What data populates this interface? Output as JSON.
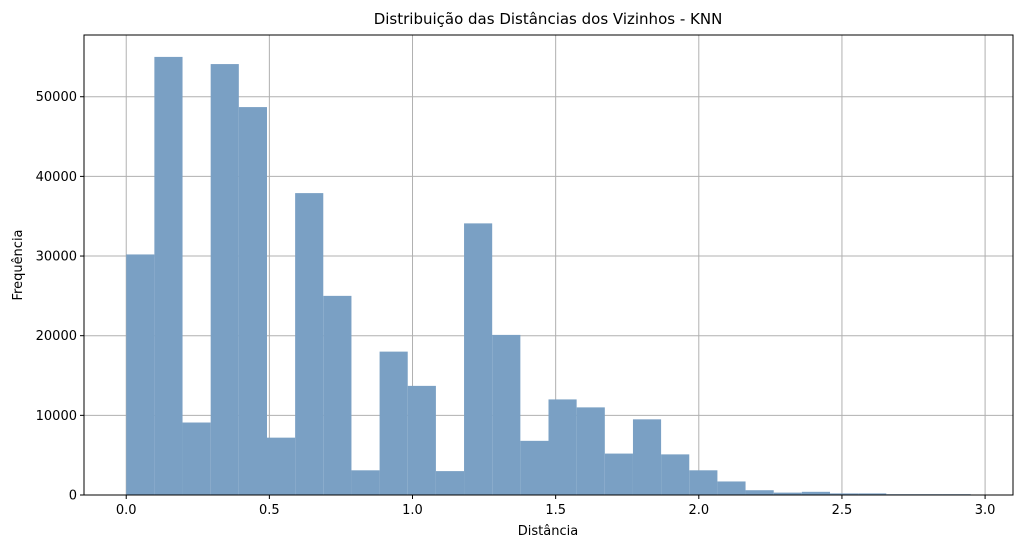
{
  "chart_data": {
    "type": "bar",
    "title": "Distribuição das Distâncias dos Vizinhos - KNN",
    "xlabel": "Distância",
    "ylabel": "Frequência",
    "bar_color": "#7aa0c4",
    "grid": true,
    "xlim": [
      -0.1475,
      3.0975
    ],
    "ylim": [
      0,
      57750
    ],
    "xticks": [
      0.0,
      0.5,
      1.0,
      1.5,
      2.0,
      2.5,
      3.0
    ],
    "xtick_labels": [
      "0.0",
      "0.5",
      "1.0",
      "1.5",
      "2.0",
      "2.5",
      "3.0"
    ],
    "yticks": [
      0,
      10000,
      20000,
      30000,
      40000,
      50000
    ],
    "ytick_labels": [
      "0",
      "10000",
      "20000",
      "30000",
      "40000",
      "50000"
    ],
    "bin_edges": [
      0.0,
      0.0983,
      0.1967,
      0.295,
      0.3933,
      0.4917,
      0.59,
      0.6883,
      0.7867,
      0.885,
      0.9833,
      1.0817,
      1.18,
      1.2783,
      1.3767,
      1.475,
      1.5733,
      1.6717,
      1.77,
      1.8683,
      1.9667,
      2.065,
      2.1633,
      2.2617,
      2.36,
      2.4583,
      2.5567,
      2.655,
      2.7533,
      2.8517,
      2.95
    ],
    "values": [
      30200,
      55000,
      9100,
      54100,
      48700,
      7200,
      37900,
      25000,
      3100,
      18000,
      13700,
      3000,
      34100,
      20100,
      6800,
      12000,
      11000,
      5200,
      9500,
      5100,
      3100,
      1700,
      600,
      300,
      400,
      200,
      200,
      100,
      100,
      100
    ]
  }
}
